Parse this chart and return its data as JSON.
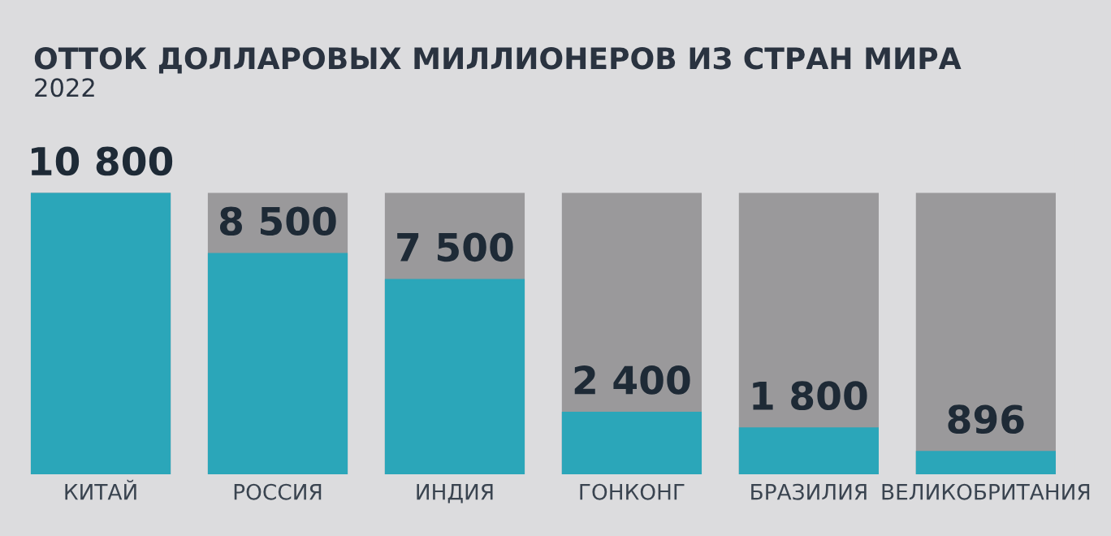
{
  "chart_data": {
    "type": "bar",
    "title": "ОТТОК ДОЛЛАРОВЫХ МИЛЛИОНЕРОВ ИЗ СТРАН МИРА",
    "subtitle": "2022",
    "categories": [
      "КИТАЙ",
      "РОССИЯ",
      "ИНДИЯ",
      "ГОНКОНГ",
      "БРАЗИЛИЯ",
      "ВЕЛИКОБРИТАНИЯ"
    ],
    "values": [
      10800,
      8500,
      7500,
      2400,
      1800,
      896
    ],
    "value_labels": [
      "10 800",
      "8 500",
      "7 500",
      "2 400",
      "1 800",
      "896"
    ],
    "color": "#2ba6b9"
  }
}
